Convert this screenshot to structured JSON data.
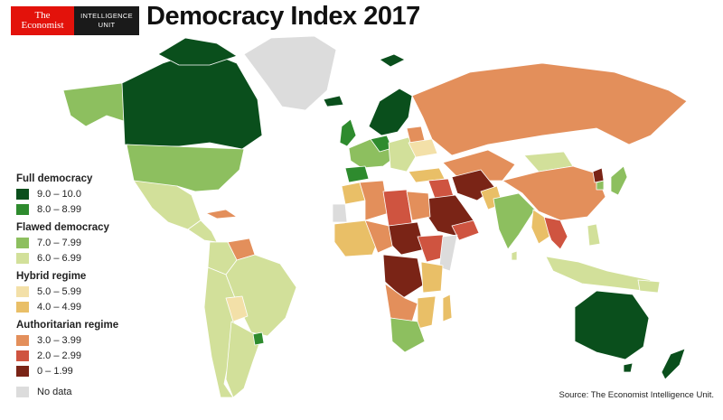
{
  "logo": {
    "economist_line1": "The",
    "economist_line2": "Economist",
    "eiu_line1": "INTELLIGENCE",
    "eiu_line2": "UNIT"
  },
  "title": "Democracy Index 2017",
  "legend": {
    "groups": [
      {
        "heading": "Full democracy",
        "items": [
          {
            "label": "9.0 – 10.0",
            "color": "#0a4f1c"
          },
          {
            "label": "8.0 – 8.99",
            "color": "#2e8b2e"
          }
        ]
      },
      {
        "heading": "Flawed democracy",
        "items": [
          {
            "label": "7.0 – 7.99",
            "color": "#8dbf5f"
          },
          {
            "label": "6.0 – 6.99",
            "color": "#d2e09a"
          }
        ]
      },
      {
        "heading": "Hybrid regime",
        "items": [
          {
            "label": "5.0 – 5.99",
            "color": "#f3e0a8"
          },
          {
            "label": "4.0 – 4.99",
            "color": "#e9bf67"
          }
        ]
      },
      {
        "heading": "Authoritarian regime",
        "items": [
          {
            "label": "3.0 – 3.99",
            "color": "#e38f5b"
          },
          {
            "label": "2.0 – 2.99",
            "color": "#cf5440"
          },
          {
            "label": "0 – 1.99",
            "color": "#7a2416"
          }
        ]
      }
    ],
    "no_data": {
      "label": "No data",
      "color": "#dcdcdc"
    }
  },
  "source": "Source: The Economist Intelligence Unit.",
  "colors": {
    "full_high": "#0a4f1c",
    "full_low": "#2e8b2e",
    "flawed_high": "#8dbf5f",
    "flawed_low": "#d2e09a",
    "hybrid_high": "#f3e0a8",
    "hybrid_low": "#e9bf67",
    "auth_high": "#e38f5b",
    "auth_mid": "#cf5440",
    "auth_low": "#7a2416",
    "no_data": "#dcdcdc",
    "border": "#ffffff"
  }
}
